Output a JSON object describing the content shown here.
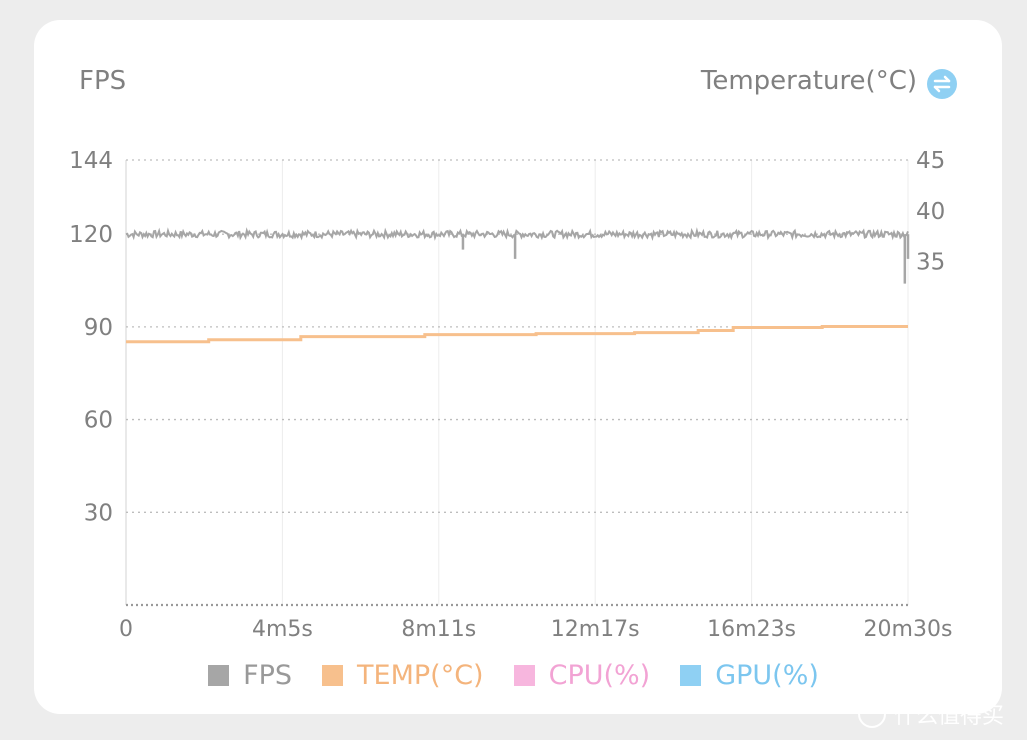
{
  "header": {
    "left_title": "FPS",
    "right_title": "Temperature(°C)"
  },
  "icons": {
    "toggle": "swap-arrows-icon"
  },
  "colors": {
    "fps": "#a6a6a6",
    "temp": "#f7c08d",
    "cpu": "#f7b6de",
    "gpu": "#8fd0f3",
    "grid": "#d9d9d9"
  },
  "chart_data": {
    "type": "line",
    "x_ticks": [
      "0",
      "4m5s",
      "8m11s",
      "12m17s",
      "16m23s",
      "20m30s"
    ],
    "x_range_seconds": [
      0,
      1230
    ],
    "y_left": {
      "label": "FPS",
      "ticks": [
        144,
        120,
        90,
        60,
        30
      ],
      "range": [
        0,
        144
      ]
    },
    "y_right": {
      "label": "Temperature(°C)",
      "ticks": [
        45,
        40,
        35
      ]
    },
    "legend": [
      "FPS",
      "TEMP(°C)",
      "CPU(%)",
      "GPU(%)"
    ],
    "series": [
      {
        "name": "FPS",
        "axis": "left",
        "baseline": 120,
        "x_seconds": [
          0,
          120,
          240,
          360,
          480,
          529,
          530,
          600,
          612,
          613,
          720,
          840,
          960,
          1080,
          1200,
          1224,
          1225,
          1230
        ],
        "values": [
          120,
          120,
          120,
          120,
          120,
          120,
          115,
          120,
          112,
          120,
          120,
          120,
          120,
          120,
          120,
          120,
          104,
          112
        ]
      },
      {
        "name": "TEMP(°C)",
        "axis": "right",
        "x_seconds": [
          0,
          130,
          130,
          275,
          275,
          470,
          470,
          645,
          645,
          800,
          800,
          900,
          900,
          955,
          955,
          1095,
          1095,
          1230
        ],
        "values": [
          27.1,
          27.1,
          27.3,
          27.3,
          27.6,
          27.6,
          27.8,
          27.8,
          27.9,
          27.9,
          28.0,
          28.0,
          28.2,
          28.2,
          28.5,
          28.5,
          28.6,
          28.6
        ]
      }
    ]
  },
  "watermark": "什么值得买"
}
